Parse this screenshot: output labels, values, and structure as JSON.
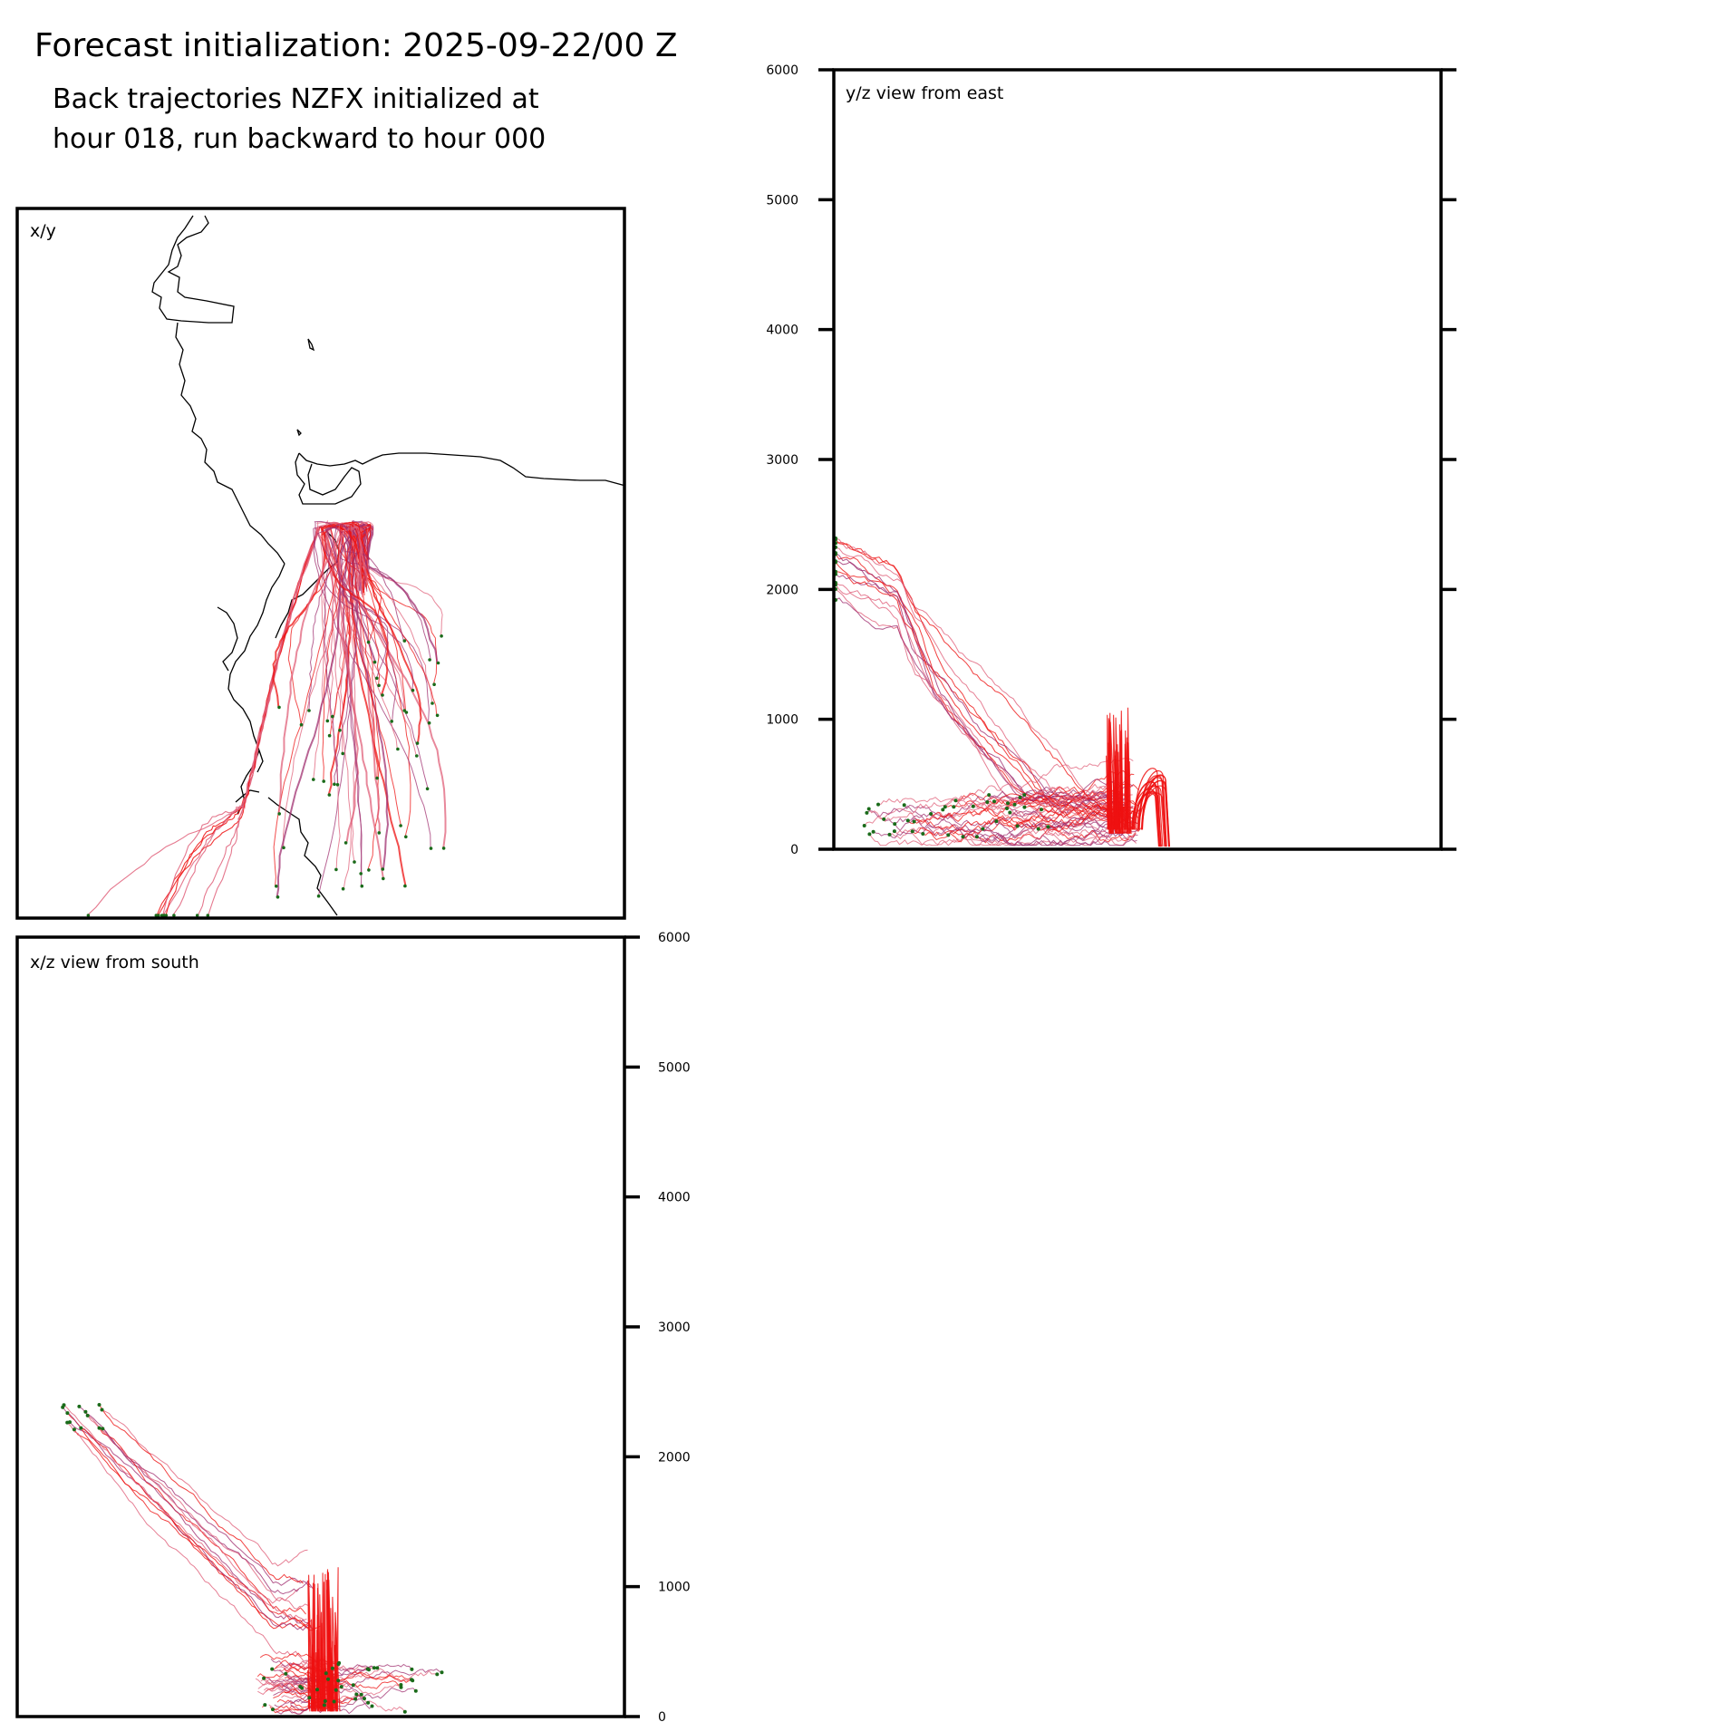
{
  "figure": {
    "title": "Forecast initialization: 2025-09-22/00 Z",
    "subtitle_line1": "Back trajectories NZFX initialized at",
    "subtitle_line2": "hour 018, run backward to hour 000"
  },
  "colors": {
    "trajectory_main": "#ee1111",
    "trajectory_light": "#e0607a",
    "trajectory_purple": "#a03070",
    "endpoint_marker": "#1a6b1a",
    "coastline": "#000000",
    "frame": "#000000"
  },
  "chart_data": [
    {
      "type": "line",
      "panel": "xy",
      "title": "x/y",
      "description_units": "map plan view",
      "coastline": "present"
    },
    {
      "type": "line",
      "panel": "yz",
      "title": "y/z view from east",
      "ylabel": "",
      "ylim": [
        0,
        6000
      ],
      "yticks": [
        0,
        1000,
        2000,
        3000,
        4000,
        5000,
        6000
      ],
      "ytick_labels": [
        "0",
        "1000",
        "2000",
        "3000",
        "4000",
        "5000",
        "6000"
      ],
      "tick_side": "left"
    },
    {
      "type": "line",
      "panel": "xz",
      "title": "x/z view from south",
      "ylabel": "",
      "ylim": [
        0,
        6000
      ],
      "yticks": [
        0,
        1000,
        2000,
        3000,
        4000,
        5000,
        6000
      ],
      "ytick_labels": [
        "0",
        "1000",
        "2000",
        "3000",
        "4000",
        "5000",
        "6000"
      ],
      "tick_side": "right"
    }
  ]
}
